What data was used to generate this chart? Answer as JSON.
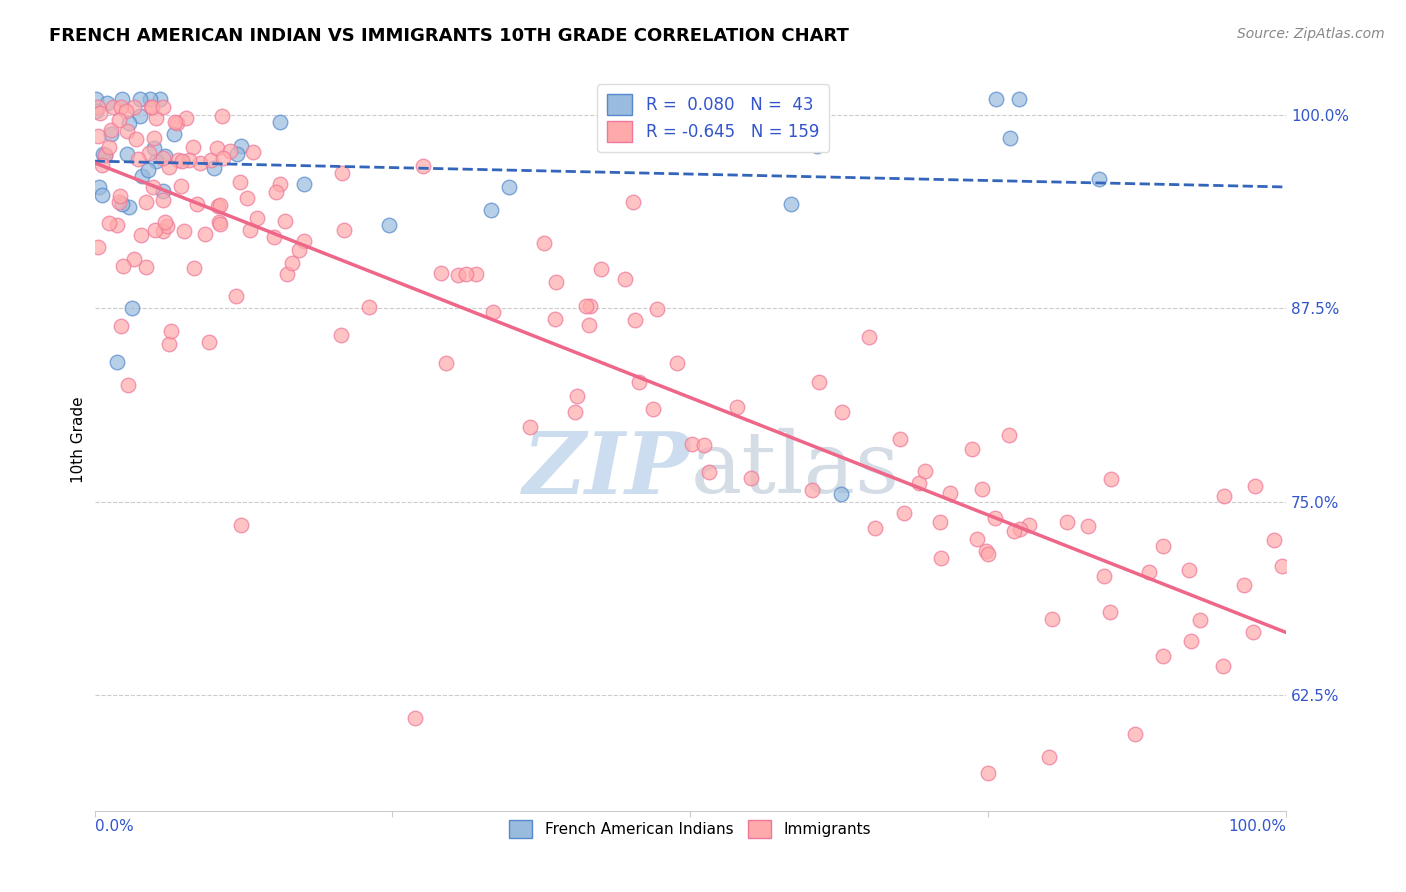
{
  "title": "FRENCH AMERICAN INDIAN VS IMMIGRANTS 10TH GRADE CORRELATION CHART",
  "source": "Source: ZipAtlas.com",
  "ylabel": "10th Grade",
  "ytick_labels": [
    "100.0%",
    "87.5%",
    "75.0%",
    "62.5%"
  ],
  "ytick_values": [
    1.0,
    0.875,
    0.75,
    0.625
  ],
  "xlim": [
    0.0,
    1.0
  ],
  "ylim": [
    0.55,
    1.03
  ],
  "blue_color": "#99BBDD",
  "pink_color": "#FFAAAA",
  "blue_edge_color": "#5588CC",
  "pink_edge_color": "#EE7799",
  "blue_line_color": "#3366BB",
  "pink_line_color": "#EE6688",
  "text_color": "#3355CC",
  "blue_r": 0.08,
  "pink_r": -0.645,
  "blue_n": 43,
  "pink_n": 159,
  "watermark_color": "#CCDDEF"
}
